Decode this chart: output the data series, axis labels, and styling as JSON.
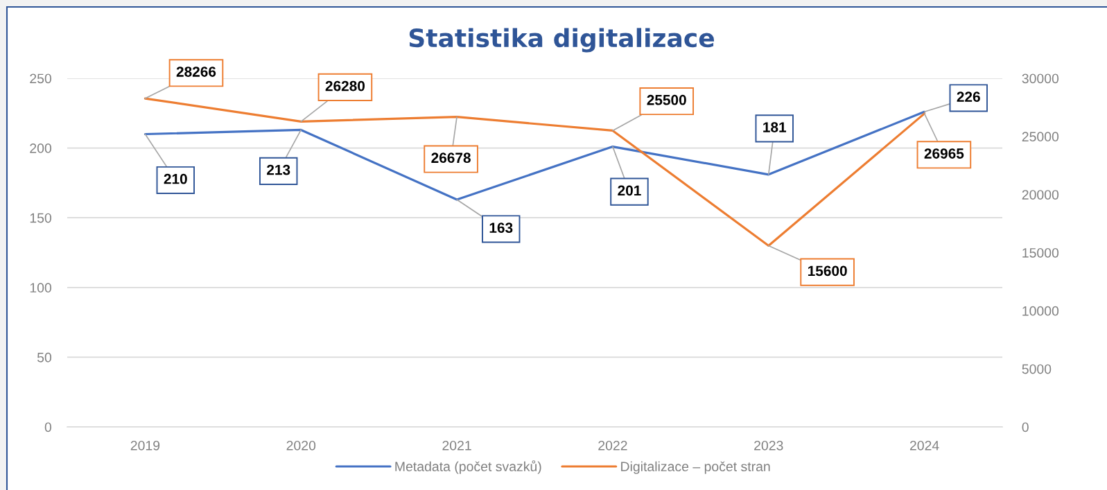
{
  "chart_data": {
    "type": "line",
    "title": "Statistika digitalizace",
    "categories": [
      "2019",
      "2020",
      "2021",
      "2022",
      "2023",
      "2024"
    ],
    "series": [
      {
        "name": "Metadata (počet svazků)",
        "color": "#4472c4",
        "values": [
          210,
          213,
          163,
          201,
          181,
          226
        ]
      },
      {
        "name": "Digitalizace – počet stran",
        "color": "#ed7d31",
        "axis": "y2",
        "values": [
          28266,
          26280,
          26678,
          25500,
          15600,
          26965
        ]
      }
    ],
    "ylim": [
      0,
      250
    ],
    "yticks": [
      0,
      50,
      100,
      150,
      200,
      250
    ],
    "y2lim": [
      0,
      30000
    ],
    "y2ticks": [
      0,
      5000,
      10000,
      15000,
      20000,
      25000,
      30000
    ],
    "grid": "y",
    "legend": "bottom",
    "line_style": "solid",
    "data_labels": true
  }
}
